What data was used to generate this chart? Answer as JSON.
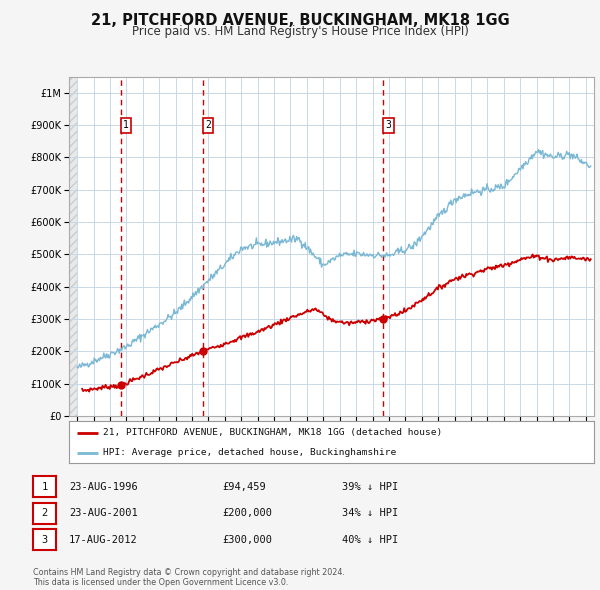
{
  "title": "21, PITCHFORD AVENUE, BUCKINGHAM, MK18 1GG",
  "subtitle": "Price paid vs. HM Land Registry's House Price Index (HPI)",
  "title_fontsize": 10.5,
  "subtitle_fontsize": 8.5,
  "bg_color": "#f5f5f5",
  "plot_bg_color": "#ffffff",
  "hatch_bg_color": "#e8e8e8",
  "grid_color": "#c8d8e8",
  "red_color": "#cc0000",
  "blue_color": "#7ab8d4",
  "sale_dates": [
    1996.645,
    2001.645,
    2012.629
  ],
  "sale_prices": [
    94459,
    200000,
    300000
  ],
  "sale_labels": [
    "1",
    "2",
    "3"
  ],
  "vline_dates": [
    1996.645,
    2001.645,
    2012.629
  ],
  "legend_red_label": "21, PITCHFORD AVENUE, BUCKINGHAM, MK18 1GG (detached house)",
  "legend_blue_label": "HPI: Average price, detached house, Buckinghamshire",
  "table_rows": [
    {
      "num": "1",
      "date": "23-AUG-1996",
      "price": "£94,459",
      "pct": "39% ↓ HPI"
    },
    {
      "num": "2",
      "date": "23-AUG-2001",
      "price": "£200,000",
      "pct": "34% ↓ HPI"
    },
    {
      "num": "3",
      "date": "17-AUG-2012",
      "price": "£300,000",
      "pct": "40% ↓ HPI"
    }
  ],
  "footer": "Contains HM Land Registry data © Crown copyright and database right 2024.\nThis data is licensed under the Open Government Licence v3.0.",
  "ylim": [
    0,
    1050000
  ],
  "yticks": [
    0,
    100000,
    200000,
    300000,
    400000,
    500000,
    600000,
    700000,
    800000,
    900000,
    1000000
  ],
  "xlim_start": 1993.5,
  "xlim_end": 2025.5,
  "data_start": 1994.0,
  "xticks": [
    1994,
    1995,
    1996,
    1997,
    1998,
    1999,
    2000,
    2001,
    2002,
    2003,
    2004,
    2005,
    2006,
    2007,
    2008,
    2009,
    2010,
    2011,
    2012,
    2013,
    2014,
    2015,
    2016,
    2017,
    2018,
    2019,
    2020,
    2021,
    2022,
    2023,
    2024,
    2025
  ]
}
